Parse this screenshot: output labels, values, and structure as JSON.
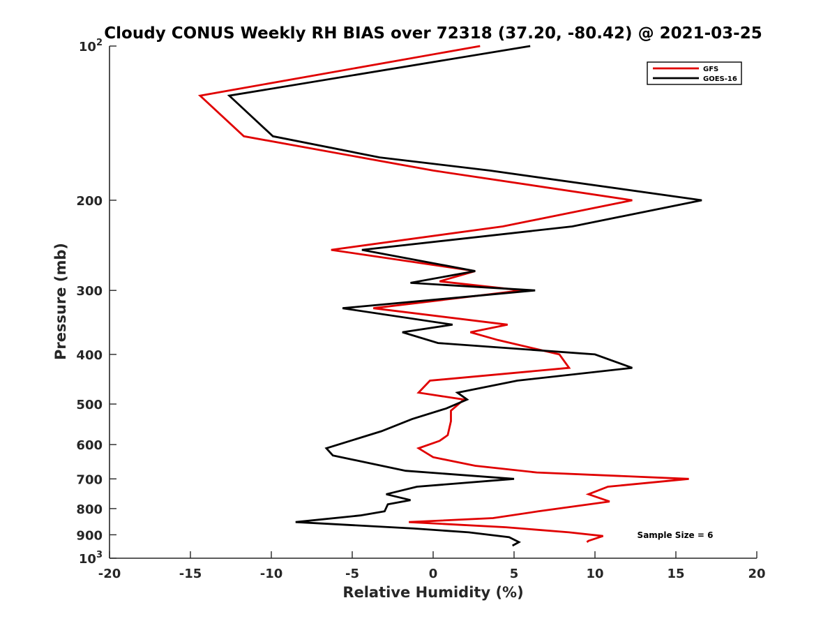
{
  "chart_data": {
    "type": "line",
    "title": "Cloudy CONUS Weekly RH BIAS over 72318 (37.20, -80.42) @ 2021-03-25",
    "xlabel": "Relative Humidity (%)",
    "ylabel": "Pressure (mb)",
    "xlim": [
      -20,
      20
    ],
    "ylim": [
      100,
      1000
    ],
    "yscale": "log",
    "y_reversed": true,
    "x_ticks": [
      -20,
      -15,
      -10,
      -5,
      0,
      5,
      10,
      15,
      20
    ],
    "x_tick_labels": [
      "-20",
      "-15",
      "-10",
      "-5",
      "0",
      "5",
      "10",
      "15",
      "20"
    ],
    "y_ticks": [
      100,
      200,
      300,
      400,
      500,
      600,
      700,
      800,
      900,
      1000
    ],
    "y_tick_labels": [
      {
        "base": "10",
        "exp": "2"
      },
      {
        "base": "200",
        "exp": ""
      },
      {
        "base": "300",
        "exp": ""
      },
      {
        "base": "400",
        "exp": ""
      },
      {
        "base": "500",
        "exp": ""
      },
      {
        "base": "600",
        "exp": ""
      },
      {
        "base": "700",
        "exp": ""
      },
      {
        "base": "800",
        "exp": ""
      },
      {
        "base": "900",
        "exp": ""
      },
      {
        "base": "10",
        "exp": "3"
      }
    ],
    "legend_position": "top-right",
    "annotation": "Sample Size = 6",
    "series": [
      {
        "name": "GFS",
        "color": "#e00000",
        "points": [
          [
            2.9,
            100
          ],
          [
            -14.4,
            125
          ],
          [
            -11.7,
            150
          ],
          [
            0,
            175
          ],
          [
            12.3,
            200
          ],
          [
            4.3,
            225
          ],
          [
            -6.3,
            250
          ],
          [
            2.6,
            275
          ],
          [
            0.4,
            288
          ],
          [
            5.5,
            300
          ],
          [
            -3.7,
            325
          ],
          [
            4.6,
            350
          ],
          [
            2.3,
            362
          ],
          [
            4.0,
            375
          ],
          [
            7.8,
            400
          ],
          [
            8.4,
            425
          ],
          [
            -0.2,
            450
          ],
          [
            -0.9,
            475
          ],
          [
            1.9,
            490
          ],
          [
            1.1,
            515
          ],
          [
            1.1,
            540
          ],
          [
            0.9,
            575
          ],
          [
            0.4,
            590
          ],
          [
            -0.9,
            610
          ],
          [
            0,
            635
          ],
          [
            2.6,
            660
          ],
          [
            6.4,
            680
          ],
          [
            15.8,
            700
          ],
          [
            10.8,
            725
          ],
          [
            9.6,
            750
          ],
          [
            10.9,
            775
          ],
          [
            6.5,
            810
          ],
          [
            3.7,
            835
          ],
          [
            -1.5,
            850
          ],
          [
            4.5,
            870
          ],
          [
            8.4,
            890
          ],
          [
            10.5,
            905
          ],
          [
            9.6,
            925
          ],
          [
            9.5,
            930
          ]
        ]
      },
      {
        "name": "GOES-16",
        "color": "#000000",
        "points": [
          [
            6.0,
            100
          ],
          [
            -12.6,
            125
          ],
          [
            -9.9,
            150
          ],
          [
            -3.3,
            165
          ],
          [
            3.5,
            175
          ],
          [
            16.6,
            200
          ],
          [
            8.6,
            225
          ],
          [
            -4.4,
            250
          ],
          [
            2.6,
            275
          ],
          [
            -1.4,
            290
          ],
          [
            6.3,
            300
          ],
          [
            -5.6,
            325
          ],
          [
            1.2,
            350
          ],
          [
            -1.9,
            362
          ],
          [
            0.3,
            380
          ],
          [
            10.0,
            400
          ],
          [
            12.3,
            425
          ],
          [
            5.2,
            450
          ],
          [
            1.5,
            475
          ],
          [
            2.1,
            490
          ],
          [
            0.8,
            510
          ],
          [
            -1.3,
            535
          ],
          [
            -3.2,
            565
          ],
          [
            -6.6,
            610
          ],
          [
            -6.2,
            630
          ],
          [
            -1.7,
            675
          ],
          [
            5.0,
            700
          ],
          [
            -1.0,
            725
          ],
          [
            -2.9,
            750
          ],
          [
            -1.4,
            770
          ],
          [
            -2.8,
            785
          ],
          [
            -3.0,
            810
          ],
          [
            -4.5,
            825
          ],
          [
            -8.5,
            850
          ],
          [
            -1.2,
            875
          ],
          [
            2.2,
            890
          ],
          [
            4.7,
            910
          ],
          [
            5.3,
            930
          ],
          [
            4.9,
            945
          ]
        ]
      }
    ]
  }
}
